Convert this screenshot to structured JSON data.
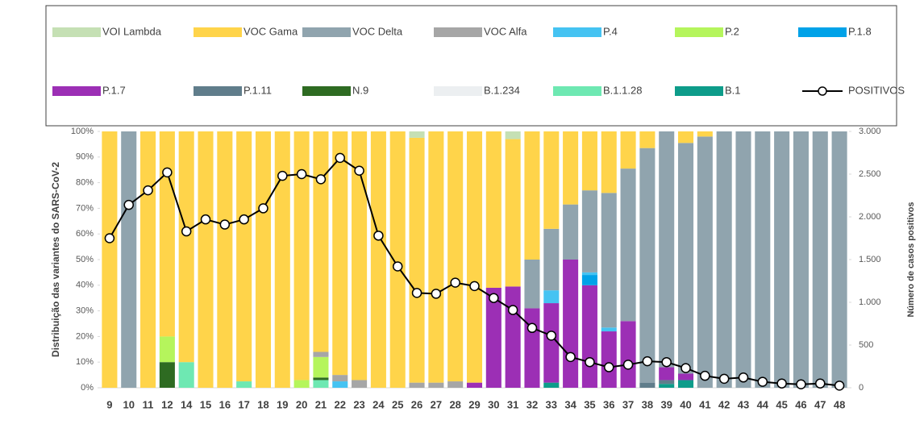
{
  "chart_data": {
    "type": "bar",
    "stacked": true,
    "y_label": "Distribuição das variantes do SARS-CoV-2",
    "y2_label": "Número de casos positivos",
    "categories": [
      "9",
      "10",
      "11",
      "12",
      "14",
      "15",
      "16",
      "17",
      "18",
      "19",
      "20",
      "21",
      "22",
      "23",
      "24",
      "25",
      "26",
      "27",
      "28",
      "29",
      "30",
      "31",
      "32",
      "33",
      "34",
      "35",
      "36",
      "37",
      "38",
      "39",
      "40",
      "41",
      "42",
      "43",
      "44",
      "45",
      "46",
      "47",
      "48"
    ],
    "ylim": [
      0,
      100
    ],
    "yticks": [
      {
        "value": 0,
        "label": "0%"
      },
      {
        "value": 10,
        "label": "10%"
      },
      {
        "value": 20,
        "label": "20%"
      },
      {
        "value": 30,
        "label": "30%"
      },
      {
        "value": 40,
        "label": "40%"
      },
      {
        "value": 50,
        "label": "50%"
      },
      {
        "value": 60,
        "label": "60%"
      },
      {
        "value": 70,
        "label": "70%"
      },
      {
        "value": 80,
        "label": "80%"
      },
      {
        "value": 90,
        "label": "90%"
      },
      {
        "value": 100,
        "label": "100%"
      }
    ],
    "y2lim": [
      0,
      3000
    ],
    "y2ticks": [
      0,
      {
        "value": 500,
        "label": "500"
      },
      {
        "value": 1000,
        "label": "1.000"
      },
      {
        "value": 1500,
        "label": "1.500"
      },
      {
        "value": 2000,
        "label": "2.000"
      },
      {
        "value": 2500,
        "label": "2.500"
      },
      {
        "value": 3000,
        "label": "3.000"
      }
    ],
    "series": [
      {
        "name": "VOI Lambda",
        "color": "#c5e0b4",
        "values": [
          0,
          0,
          0,
          0,
          0,
          0,
          0,
          0,
          0,
          0,
          0,
          0,
          0,
          0,
          0,
          0,
          2.5,
          0,
          0,
          0,
          0,
          3,
          0,
          0,
          0,
          0,
          0,
          0,
          0,
          0,
          0,
          0,
          0,
          0,
          0,
          0,
          0,
          0,
          0
        ]
      },
      {
        "name": "VOC Gama",
        "color": "#ffd44a",
        "values": [
          100,
          0,
          100,
          80,
          90,
          100,
          100,
          97.5,
          100,
          100,
          97,
          86,
          95,
          97,
          100,
          100,
          95.5,
          98,
          97.5,
          98,
          61,
          57.5,
          50,
          38,
          28.5,
          23,
          24,
          14.5,
          6.5,
          0,
          4.5,
          2,
          0,
          0,
          0,
          0,
          0,
          0,
          0
        ]
      },
      {
        "name": "VOC Delta",
        "color": "#90a4ae",
        "values": [
          0,
          100,
          0,
          0,
          0,
          0,
          0,
          0,
          0,
          0,
          0,
          0,
          0,
          0,
          0,
          0,
          0,
          0,
          0,
          0,
          0,
          0,
          19,
          24,
          21.5,
          32,
          52.5,
          59.5,
          91.5,
          92,
          90,
          98,
          100,
          100,
          100,
          100,
          100,
          100,
          100
        ]
      },
      {
        "name": "VOC Alfa",
        "color": "#a6a6a6",
        "values": [
          0,
          0,
          0,
          0,
          0,
          0,
          0,
          0,
          0,
          0,
          0,
          2,
          2.5,
          3,
          0,
          0,
          2,
          2,
          2.5,
          0,
          0,
          0,
          0,
          0,
          0,
          0,
          0,
          0,
          0,
          0,
          0,
          0,
          0,
          0,
          0,
          0,
          0,
          0,
          0
        ]
      },
      {
        "name": "P.4",
        "color": "#45c3f2",
        "values": [
          0,
          0,
          0,
          0,
          0,
          0,
          0,
          0,
          0,
          0,
          0,
          0,
          2.5,
          0,
          0,
          0,
          0,
          0,
          0,
          0,
          0,
          0,
          0,
          5,
          0,
          1,
          1.5,
          0,
          0,
          0,
          0,
          0,
          0,
          0,
          0,
          0,
          0,
          0,
          0
        ]
      },
      {
        "name": "P.2",
        "color": "#b5f55c",
        "values": [
          0,
          0,
          0,
          10,
          0,
          0,
          0,
          0,
          0,
          0,
          3,
          8,
          0,
          0,
          0,
          0,
          0,
          0,
          0,
          0,
          0,
          0,
          0,
          0,
          0,
          0,
          0,
          0,
          0,
          0,
          0,
          0,
          0,
          0,
          0,
          0,
          0,
          0,
          0
        ]
      },
      {
        "name": "P.1.8",
        "color": "#00a2e8",
        "values": [
          0,
          0,
          0,
          0,
          0,
          0,
          0,
          0,
          0,
          0,
          0,
          0,
          0,
          0,
          0,
          0,
          0,
          0,
          0,
          0,
          0,
          0,
          0,
          0,
          0,
          4,
          0,
          0,
          0,
          0,
          0,
          0,
          0,
          0,
          0,
          0,
          0,
          0,
          0
        ]
      },
      {
        "name": "P.1.7",
        "color": "#9c2fb5",
        "values": [
          0,
          0,
          0,
          0,
          0,
          0,
          0,
          0,
          0,
          0,
          0,
          0,
          0,
          0,
          0,
          0,
          0,
          0,
          0,
          2,
          39,
          39.5,
          31,
          31,
          50,
          40,
          22,
          26,
          0,
          5,
          2.5,
          0,
          0,
          0,
          0,
          0,
          0,
          0,
          0
        ]
      },
      {
        "name": "P.1.11",
        "color": "#607d8b",
        "values": [
          0,
          0,
          0,
          0,
          0,
          0,
          0,
          0,
          0,
          0,
          0,
          0,
          0,
          0,
          0,
          0,
          0,
          0,
          0,
          0,
          0,
          0,
          0,
          0,
          0,
          0,
          0,
          0,
          2,
          1.5,
          0,
          0,
          0,
          0,
          0,
          0,
          0,
          0,
          0
        ]
      },
      {
        "name": "N.9",
        "color": "#2e6b22",
        "values": [
          0,
          0,
          0,
          10,
          0,
          0,
          0,
          0,
          0,
          0,
          0,
          1,
          0,
          0,
          0,
          0,
          0,
          0,
          0,
          0,
          0,
          0,
          0,
          0,
          0,
          0,
          0,
          0,
          0,
          0,
          0,
          0,
          0,
          0,
          0,
          0,
          0,
          0,
          0
        ]
      },
      {
        "name": "B.1.234",
        "color": "#eceff1",
        "values": [
          0,
          0,
          0,
          0,
          0,
          0,
          0,
          0,
          0,
          0,
          0,
          0,
          0,
          0,
          0,
          0,
          0,
          0,
          0,
          0,
          0,
          0,
          0,
          0,
          0,
          0,
          0,
          0,
          0,
          0,
          0,
          0,
          0,
          0,
          0,
          0,
          0,
          0,
          0
        ]
      },
      {
        "name": "B.1.1.28",
        "color": "#6ee8b2",
        "values": [
          0,
          0,
          0,
          0,
          10,
          0,
          0,
          2.5,
          0,
          0,
          0,
          3,
          0,
          0,
          0,
          0,
          0,
          0,
          0,
          0,
          0,
          0,
          0,
          0,
          0,
          0,
          0,
          0,
          0,
          0,
          0,
          0,
          0,
          0,
          0,
          0,
          0,
          0,
          0
        ]
      },
      {
        "name": "B.1",
        "color": "#0e9c8a",
        "values": [
          0,
          0,
          0,
          0,
          0,
          0,
          0,
          0,
          0,
          0,
          0,
          0,
          0,
          0,
          0,
          0,
          0,
          0,
          0,
          0,
          0,
          0,
          0,
          2,
          0,
          0,
          0,
          0,
          0,
          1.5,
          3,
          0,
          0,
          0,
          0,
          0,
          0,
          0,
          0
        ]
      },
      {
        "name": "POSITIVOS",
        "color": "#000000",
        "type": "line",
        "axis": "y2",
        "values": [
          1750,
          2140,
          2310,
          2520,
          1830,
          1970,
          1910,
          1970,
          2100,
          2480,
          2500,
          2440,
          2690,
          2540,
          1780,
          1420,
          1110,
          1100,
          1230,
          1190,
          1050,
          910,
          700,
          610,
          360,
          300,
          240,
          270,
          310,
          300,
          230,
          140,
          105,
          120,
          70,
          50,
          40,
          50,
          25
        ]
      }
    ]
  }
}
